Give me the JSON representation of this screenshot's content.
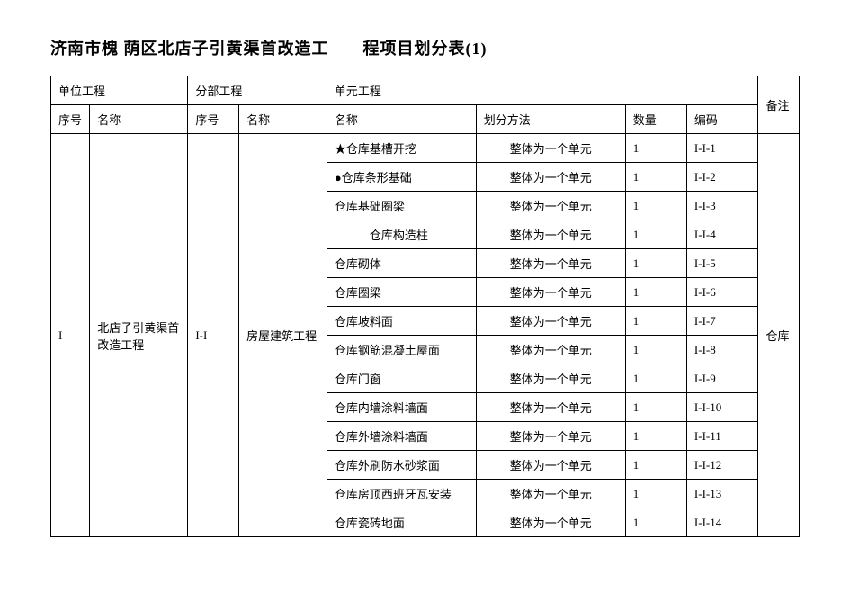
{
  "title": "济南市槐 荫区北店子引黄渠首改造工　　程项目划分表(1)",
  "headers": {
    "unit_proj": "单位工程",
    "sub_proj": "分部工程",
    "unit_eng": "单元工程",
    "seq": "序号",
    "name": "名称",
    "method": "划分方法",
    "qty": "数量",
    "code": "编码",
    "note": "备注"
  },
  "unit": {
    "seq": "I",
    "name": "北店子引黄渠首改造工程"
  },
  "sub": {
    "seq": "I-I",
    "name": "房屋建筑工程"
  },
  "note_merged": "仓库",
  "rows": [
    {
      "name": "★仓库基槽开挖",
      "method": "整体为一个单元",
      "qty": "1",
      "code": "I-I-1"
    },
    {
      "name": "●仓库条形基础",
      "method": "整体为一个单元",
      "qty": "1",
      "code": "I-I-2"
    },
    {
      "name": "仓库基础圈梁",
      "method": "整体为一个单元",
      "qty": "1",
      "code": "I-I-3"
    },
    {
      "name": "　　　仓库构造柱",
      "method": "整体为一个单元",
      "qty": "1",
      "code": "I-I-4"
    },
    {
      "name": "仓库砌体",
      "method": "整体为一个单元",
      "qty": "1",
      "code": "I-I-5"
    },
    {
      "name": "仓库圈梁",
      "method": "整体为一个单元",
      "qty": "1",
      "code": "I-I-6"
    },
    {
      "name": "仓库坡料面",
      "method": "整体为一个单元",
      "qty": "1",
      "code": "I-I-7"
    },
    {
      "name": "仓库钢筋混凝土屋面",
      "method": "整体为一个单元",
      "qty": "1",
      "code": "I-I-8"
    },
    {
      "name": "仓库门窗",
      "method": "整体为一个单元",
      "qty": "1",
      "code": "I-I-9"
    },
    {
      "name": "仓库内墙涂料墙面",
      "method": "整体为一个单元",
      "qty": "1",
      "code": "I-I-10"
    },
    {
      "name": "仓库外墙涂料墙面",
      "method": "整体为一个单元",
      "qty": "1",
      "code": "I-I-11"
    },
    {
      "name": "仓库外刷防水砂浆面",
      "method": "整体为一个单元",
      "qty": "1",
      "code": "I-I-12"
    },
    {
      "name": "仓库房顶西班牙瓦安装",
      "method": "整体为一个单元",
      "qty": "1",
      "code": "I-I-13"
    },
    {
      "name": "仓库瓷砖地面",
      "method": "整体为一个单元",
      "qty": "1",
      "code": "I-I-14"
    }
  ]
}
